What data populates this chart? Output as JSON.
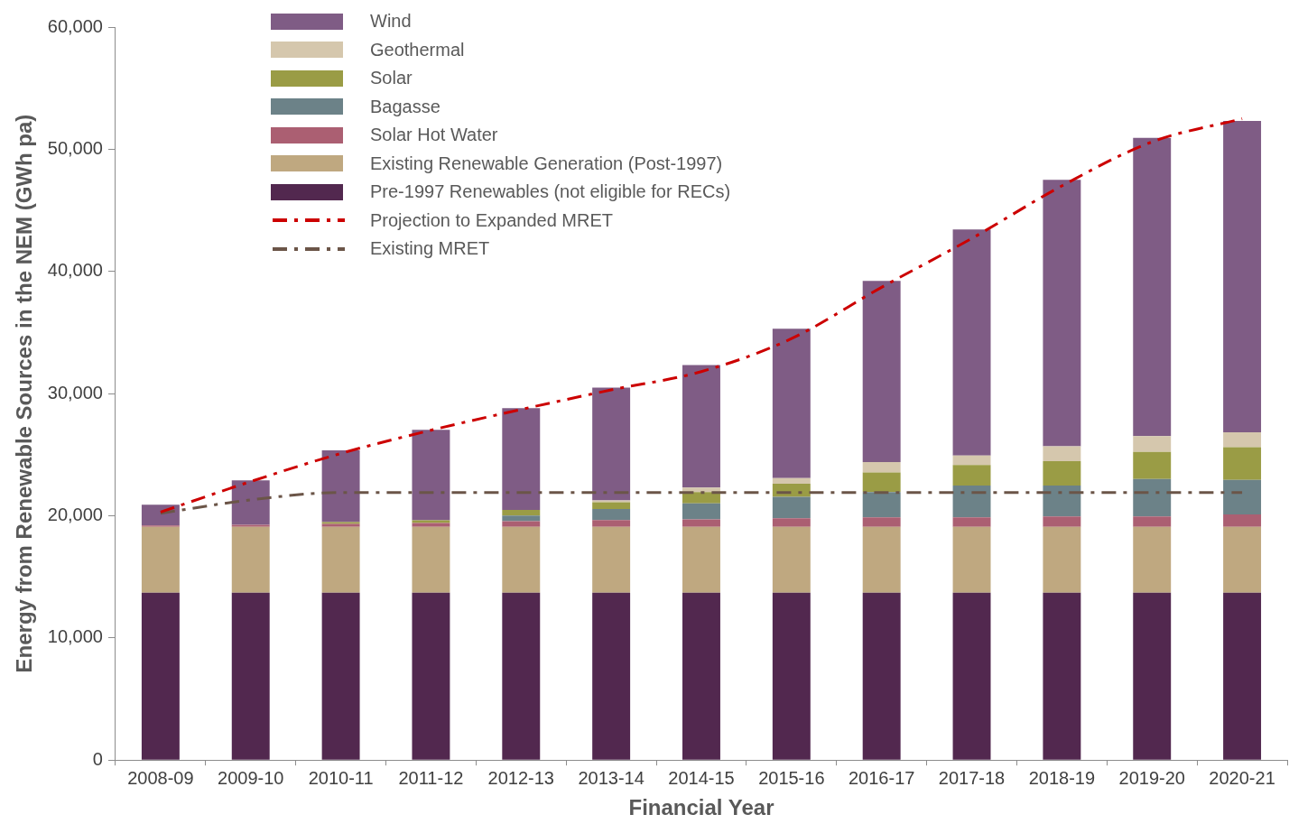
{
  "chart_data": {
    "type": "bar",
    "stacked": true,
    "xlabel": "Financial Year",
    "ylabel": "Energy from Renewable Sources in the NEM (GWh pa)",
    "categories": [
      "2008-09",
      "2009-10",
      "2010-11",
      "2011-12",
      "2012-13",
      "2013-14",
      "2014-15",
      "2015-16",
      "2016-17",
      "2017-18",
      "2018-19",
      "2019-20",
      "2020-21"
    ],
    "ylim": [
      0,
      60000
    ],
    "yticks": [
      {
        "value": 0,
        "label": "0"
      },
      {
        "value": 10000,
        "label": "10,000"
      },
      {
        "value": 20000,
        "label": "20,000"
      },
      {
        "value": 30000,
        "label": "30,000"
      },
      {
        "value": 40000,
        "label": "40,000"
      },
      {
        "value": 50000,
        "label": "50,000"
      },
      {
        "value": 60000,
        "label": "60,000"
      }
    ],
    "grid": false,
    "legend": "top left",
    "series": [
      {
        "name": "Pre-1997 Renewables (not eligible for RECs)",
        "color": "#52284f",
        "values": [
          13700,
          13700,
          13700,
          13700,
          13700,
          13700,
          13700,
          13700,
          13700,
          13700,
          13700,
          13700,
          13700
        ]
      },
      {
        "name": "Existing Renewable Generation (Post-1997)",
        "color": "#bfa880",
        "values": [
          5400,
          5400,
          5400,
          5400,
          5400,
          5400,
          5400,
          5400,
          5400,
          5400,
          5400,
          5400,
          5400
        ]
      },
      {
        "name": "Solar Hot Water",
        "color": "#ab5f72",
        "values": [
          100,
          150,
          230,
          300,
          460,
          540,
          610,
          690,
          770,
          770,
          840,
          840,
          1000
        ]
      },
      {
        "name": "Bagasse",
        "color": "#6c8288",
        "values": [
          0,
          0,
          0,
          0,
          460,
          920,
          1300,
          1760,
          2070,
          2600,
          2530,
          3060,
          2830
        ]
      },
      {
        "name": "Solar",
        "color": "#9a9c45",
        "values": [
          0,
          0,
          150,
          230,
          460,
          540,
          920,
          1070,
          1610,
          1690,
          1990,
          2220,
          2680
        ]
      },
      {
        "name": "Geothermal",
        "color": "#d5c7ad",
        "values": [
          0,
          0,
          0,
          0,
          0,
          150,
          380,
          460,
          840,
          770,
          1230,
          1300,
          1230
        ]
      },
      {
        "name": "Wind",
        "color": "#7f5c85",
        "values": [
          1700,
          3650,
          5870,
          7400,
          8320,
          9240,
          10020,
          12230,
          14830,
          18500,
          21800,
          24420,
          25480
        ]
      },
      {
        "name": "Projection to Expanded MRET",
        "type": "line",
        "line_style": "dashed",
        "marker": "none",
        "color": "#cc0000",
        "values": [
          20300,
          22800,
          25100,
          27000,
          28700,
          30300,
          31800,
          34500,
          38700,
          42700,
          47000,
          50600,
          52500
        ]
      },
      {
        "name": "Existing MRET",
        "type": "line",
        "line_style": "dashed",
        "marker": "none",
        "color": "#6b5548",
        "values": [
          20200,
          21300,
          21900,
          21900,
          21900,
          21900,
          21900,
          21900,
          21900,
          21900,
          21900,
          21900,
          21900
        ]
      }
    ]
  }
}
